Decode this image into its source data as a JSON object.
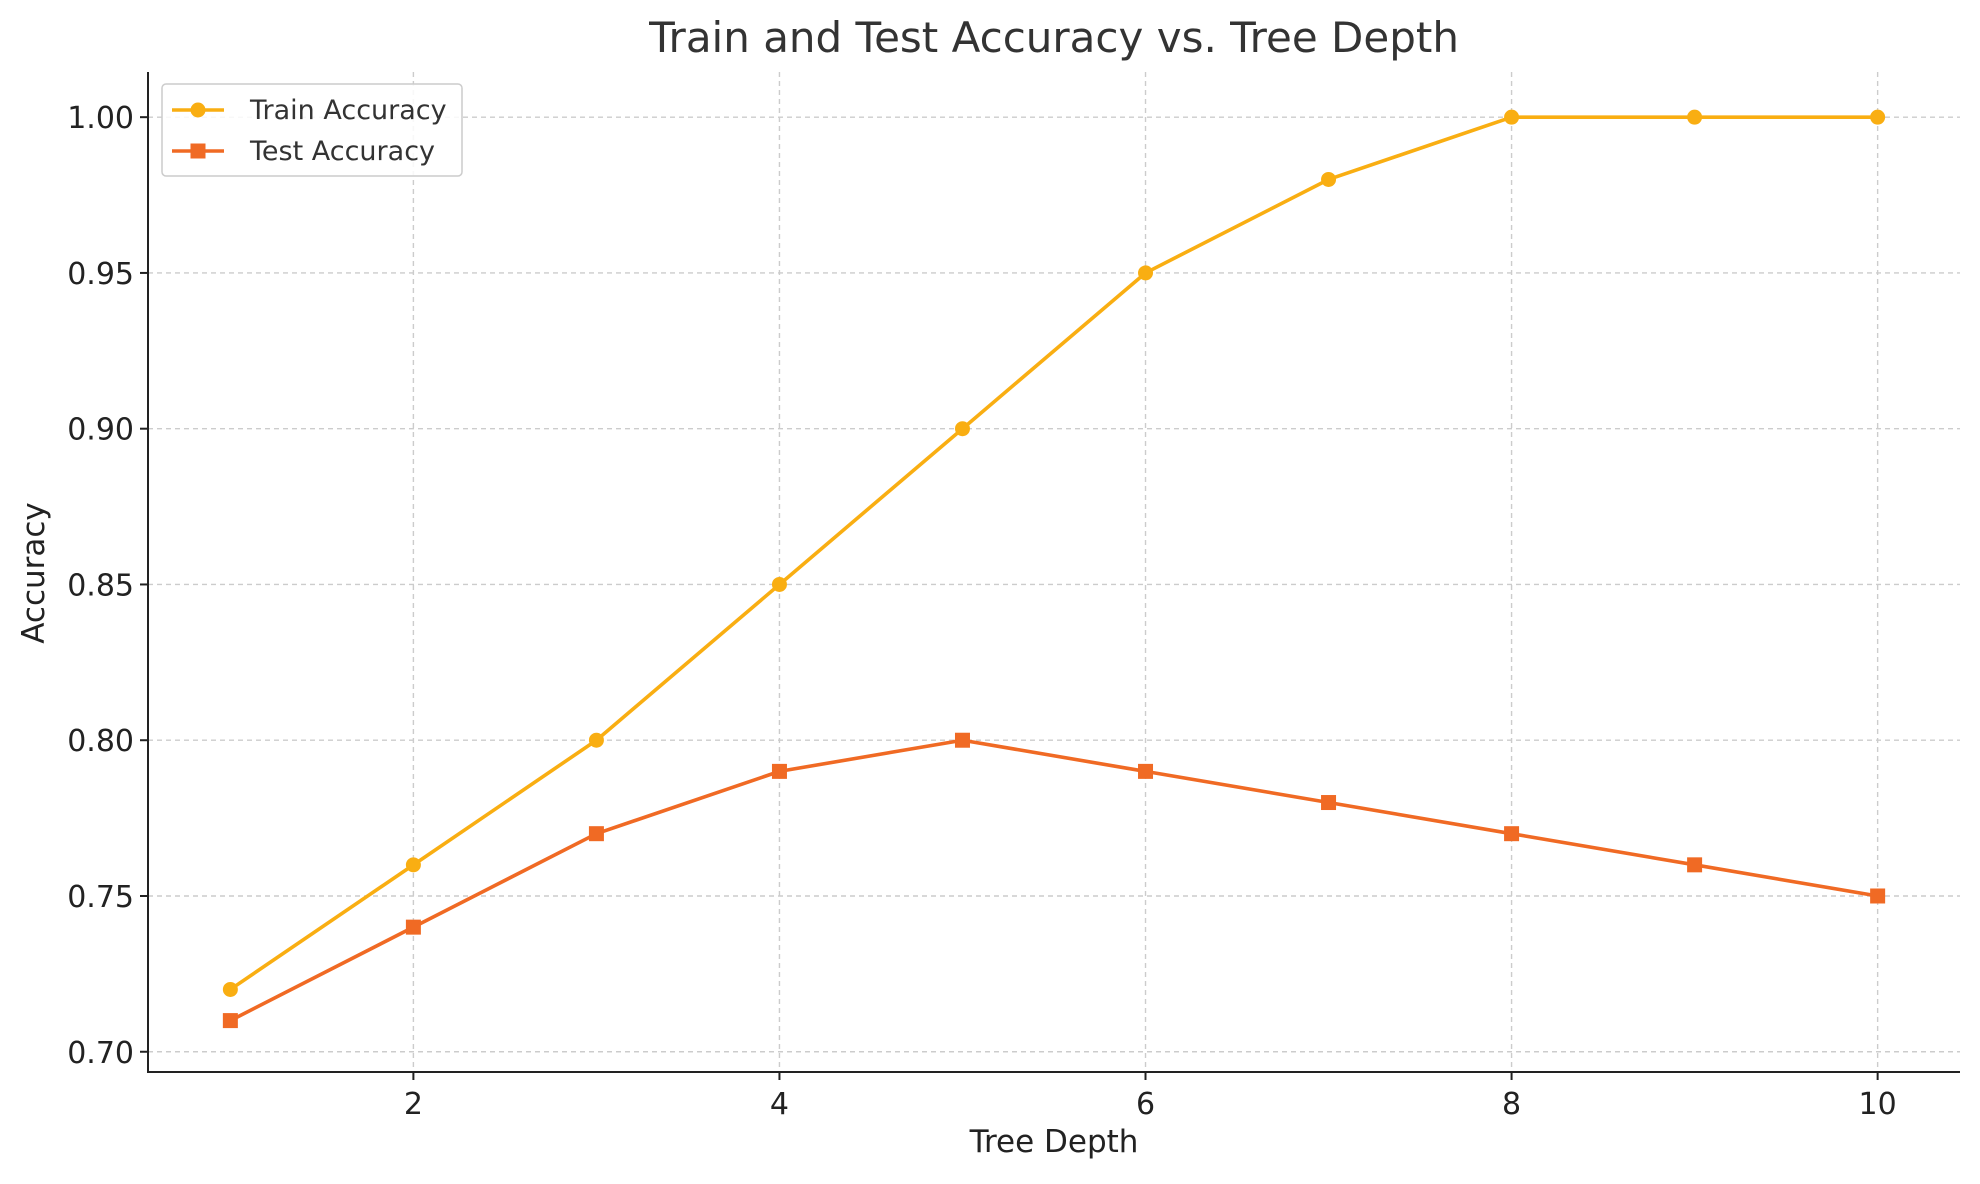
{
  "chart_data": {
    "type": "line",
    "title": "Train and Test Accuracy vs. Tree Depth",
    "xlabel": "Tree Depth",
    "ylabel": "Accuracy",
    "x": [
      1,
      2,
      3,
      4,
      5,
      6,
      7,
      8,
      9,
      10
    ],
    "xlim": [
      0.55,
      10.45
    ],
    "ylim": [
      0.6935,
      1.0145
    ],
    "xticks": [
      2,
      4,
      6,
      8,
      10
    ],
    "xtick_labels": [
      "2",
      "4",
      "6",
      "8",
      "10"
    ],
    "yticks": [
      0.7,
      0.75,
      0.8,
      0.85,
      0.9,
      0.95,
      1.0
    ],
    "ytick_labels": [
      "0.70",
      "0.75",
      "0.80",
      "0.85",
      "0.90",
      "0.95",
      "1.00"
    ],
    "grid": true,
    "legend_position": "top-left",
    "series": [
      {
        "name": "Train Accuracy",
        "marker": "circle",
        "color": "#F9AE12",
        "values": [
          0.72,
          0.76,
          0.8,
          0.85,
          0.9,
          0.95,
          0.98,
          1.0,
          1.0,
          1.0
        ]
      },
      {
        "name": "Test Accuracy",
        "marker": "square",
        "color": "#F06A24",
        "values": [
          0.71,
          0.74,
          0.77,
          0.79,
          0.8,
          0.79,
          0.78,
          0.77,
          0.76,
          0.75
        ]
      }
    ]
  },
  "colors": {
    "text": "#333333",
    "grid": "#cccccc",
    "axis": "#222222"
  }
}
